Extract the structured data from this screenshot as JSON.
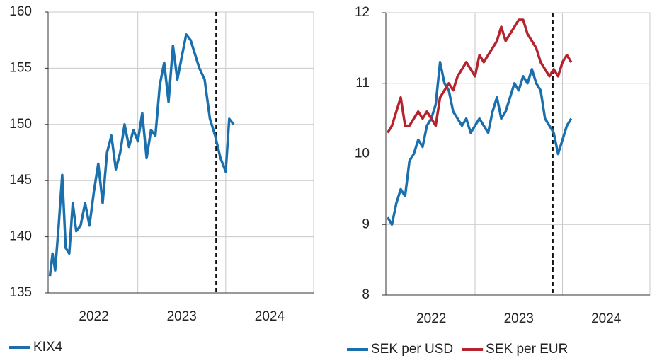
{
  "chart_data": [
    {
      "type": "line",
      "x": [
        2022.0,
        2022.03,
        2022.06,
        2022.1,
        2022.14,
        2022.18,
        2022.22,
        2022.26,
        2022.3,
        2022.35,
        2022.4,
        2022.45,
        2022.5,
        2022.55,
        2022.6,
        2022.65,
        2022.7,
        2022.75,
        2022.8,
        2022.85,
        2022.9,
        2022.95,
        2023.0,
        2023.05,
        2023.1,
        2023.15,
        2023.2,
        2023.25,
        2023.3,
        2023.35,
        2023.4,
        2023.45,
        2023.5,
        2023.55,
        2023.6,
        2023.7,
        2023.76,
        2023.82,
        2023.88,
        2023.94,
        2024.0,
        2024.04,
        2024.09
      ],
      "series": [
        {
          "name": "KIX4",
          "color": "#1a6fad",
          "values": [
            136.5,
            138.5,
            137,
            141,
            145.5,
            139,
            138.5,
            143,
            140.5,
            141,
            143,
            141,
            144,
            146.5,
            143,
            147.5,
            149,
            146,
            147.5,
            150,
            148,
            149.5,
            148.5,
            151,
            147,
            149.5,
            149,
            153.5,
            155.5,
            152,
            157,
            154,
            156,
            158,
            157.5,
            155,
            154,
            150.5,
            149,
            147,
            145.8,
            150.5,
            150
          ]
        }
      ],
      "xlim": [
        2021.98,
        2025.0
      ],
      "xticks": [
        {
          "value": 2022.5,
          "label": "2022"
        },
        {
          "value": 2023.5,
          "label": "2023"
        },
        {
          "value": 2024.5,
          "label": "2024"
        }
      ],
      "xgrid": [
        2023,
        2024
      ],
      "vline": 2023.89,
      "ylim": [
        135,
        160
      ],
      "yticks": [
        135,
        140,
        145,
        150,
        155,
        160
      ]
    },
    {
      "type": "line",
      "x": [
        2022.0,
        2022.05,
        2022.1,
        2022.15,
        2022.2,
        2022.25,
        2022.3,
        2022.35,
        2022.4,
        2022.45,
        2022.5,
        2022.55,
        2022.6,
        2022.65,
        2022.7,
        2022.75,
        2022.8,
        2022.85,
        2022.9,
        2022.95,
        2023.0,
        2023.05,
        2023.1,
        2023.15,
        2023.2,
        2023.25,
        2023.3,
        2023.35,
        2023.4,
        2023.45,
        2023.5,
        2023.55,
        2023.6,
        2023.65,
        2023.7,
        2023.75,
        2023.8,
        2023.85,
        2023.9,
        2023.95,
        2024.0,
        2024.05,
        2024.1
      ],
      "series": [
        {
          "name": "SEK per USD",
          "color": "#1a6fad",
          "values": [
            9.1,
            9.0,
            9.3,
            9.5,
            9.4,
            9.9,
            10.0,
            10.2,
            10.1,
            10.4,
            10.5,
            10.7,
            11.3,
            11.0,
            10.9,
            10.6,
            10.5,
            10.4,
            10.5,
            10.3,
            10.4,
            10.5,
            10.4,
            10.3,
            10.6,
            10.8,
            10.5,
            10.6,
            10.8,
            11.0,
            10.9,
            11.1,
            11.0,
            11.2,
            11.0,
            10.9,
            10.5,
            10.4,
            10.3,
            10.0,
            10.2,
            10.4,
            10.5
          ]
        },
        {
          "name": "SEK per EUR",
          "color": "#b5232f",
          "values": [
            10.3,
            10.4,
            10.6,
            10.8,
            10.4,
            10.4,
            10.5,
            10.6,
            10.5,
            10.6,
            10.5,
            10.4,
            10.8,
            10.9,
            11.0,
            10.9,
            11.1,
            11.2,
            11.3,
            11.2,
            11.1,
            11.4,
            11.3,
            11.4,
            11.5,
            11.6,
            11.8,
            11.6,
            11.7,
            11.8,
            11.9,
            11.9,
            11.7,
            11.6,
            11.5,
            11.3,
            11.2,
            11.1,
            11.2,
            11.1,
            11.3,
            11.4,
            11.3
          ]
        }
      ],
      "xlim": [
        2021.98,
        2025.0
      ],
      "xticks": [
        {
          "value": 2022.5,
          "label": "2022"
        },
        {
          "value": 2023.5,
          "label": "2023"
        },
        {
          "value": 2024.5,
          "label": "2024"
        }
      ],
      "xgrid": [
        2023,
        2024
      ],
      "vline": 2023.89,
      "ylim": [
        8,
        12
      ],
      "yticks": [
        8,
        9,
        10,
        11,
        12
      ]
    }
  ]
}
